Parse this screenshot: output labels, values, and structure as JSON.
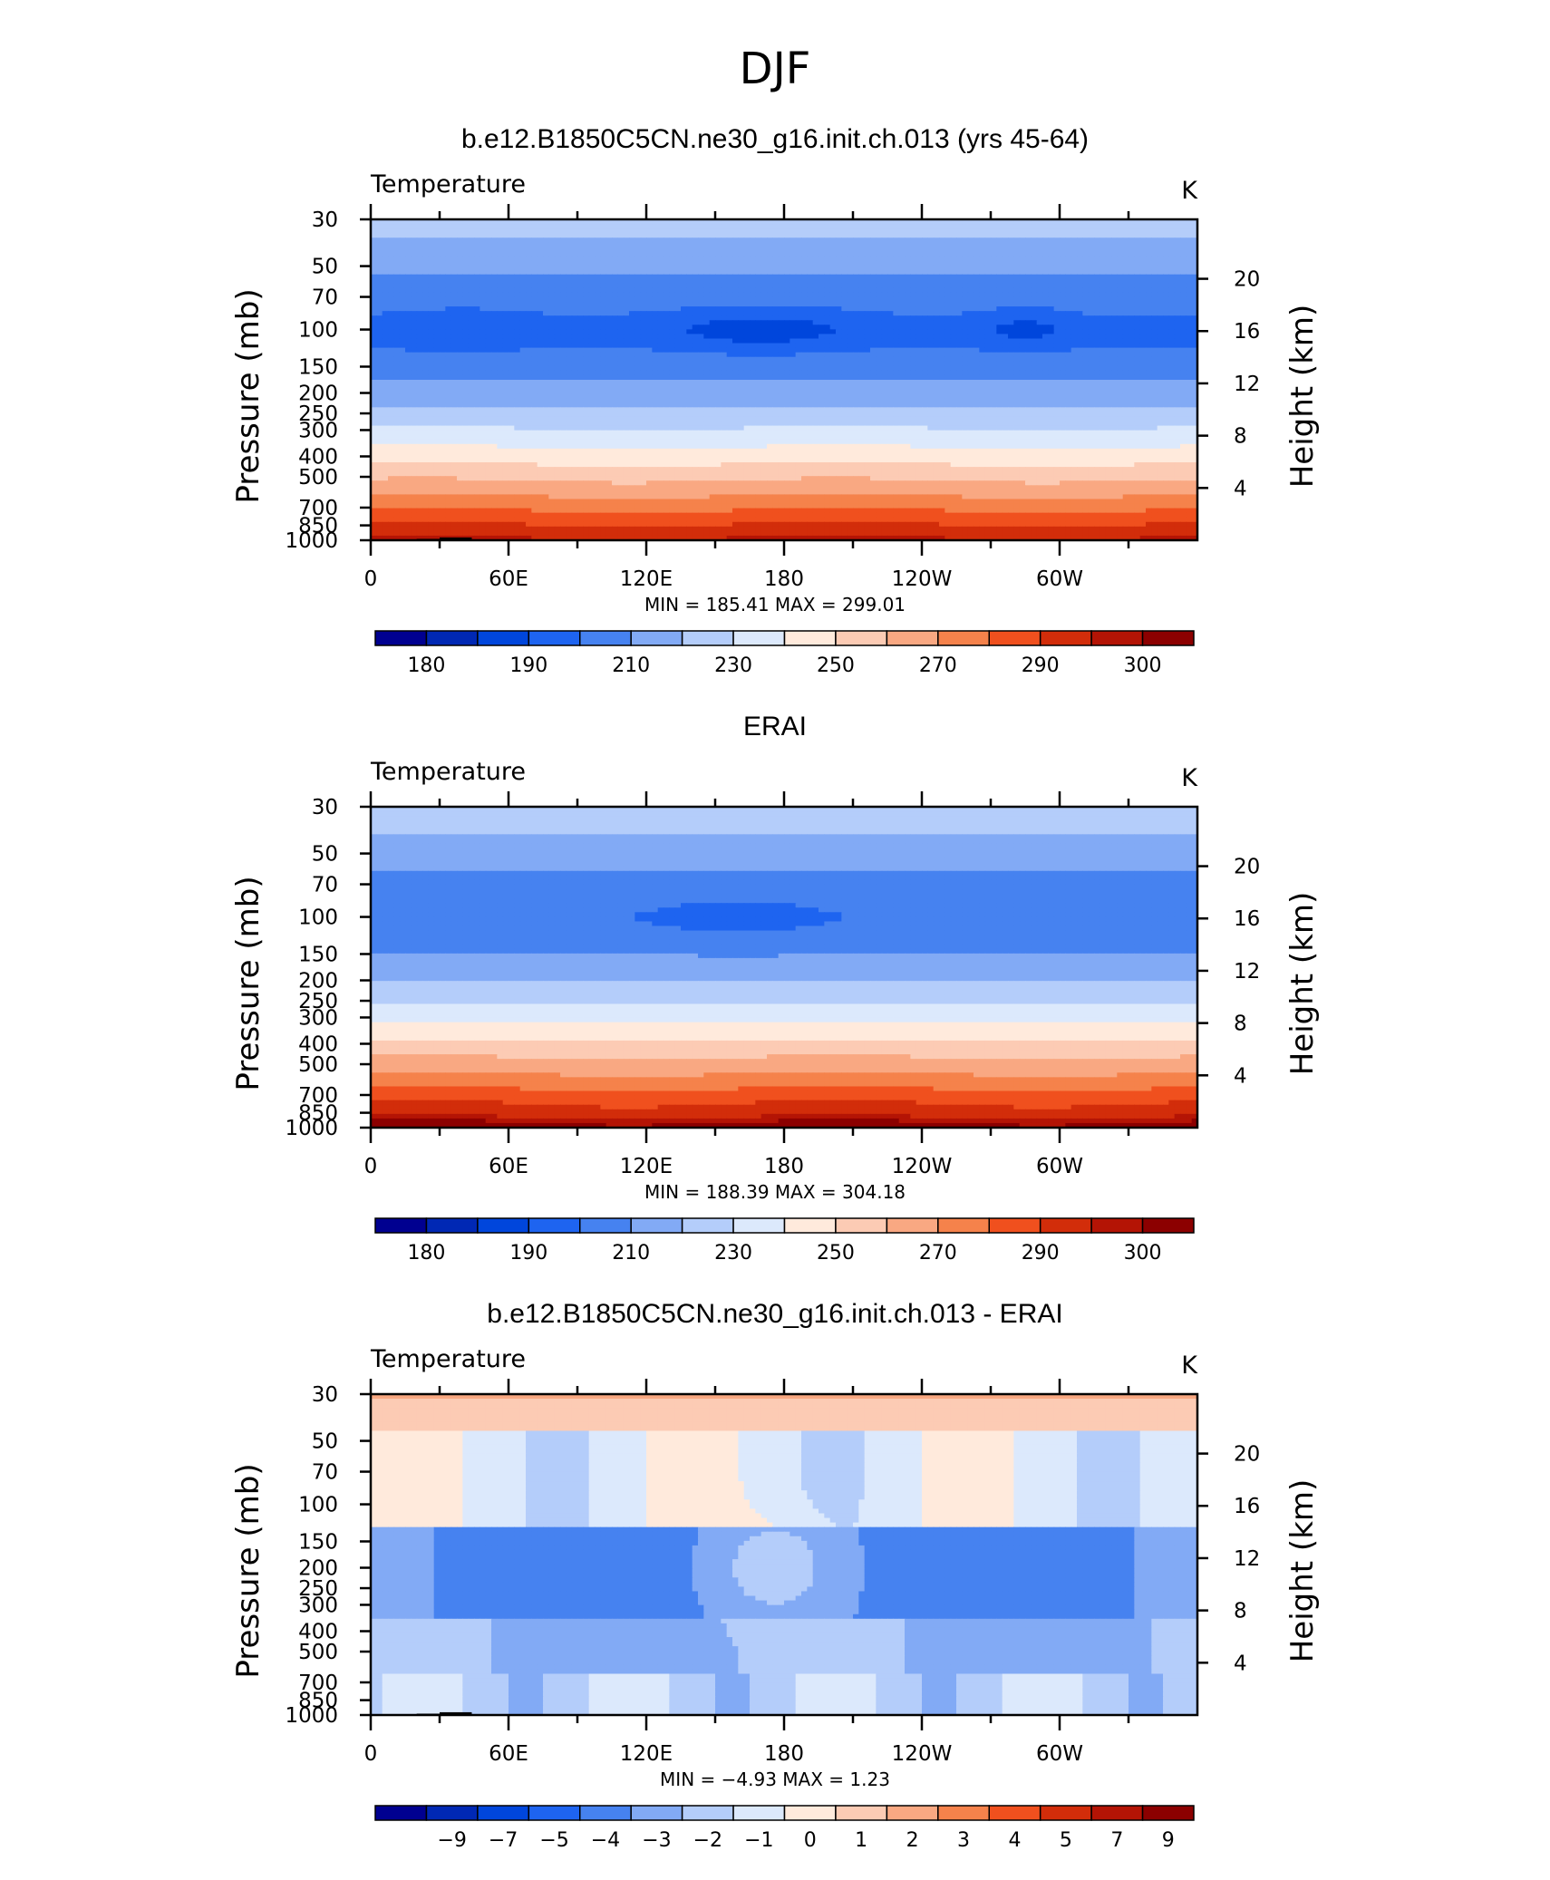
{
  "figure_title": "DJF",
  "colors": {
    "temperature_levels": [
      "#000090",
      "#0028b4",
      "#0046dc",
      "#1e64f0",
      "#4682f0",
      "#82aaf5",
      "#b4cdfa",
      "#dce9fc",
      "#ffeadc",
      "#fccbb4",
      "#f9a882",
      "#f5824b",
      "#f0501e",
      "#d22d0a",
      "#b41405",
      "#8c0000"
    ],
    "difference_levels": [
      "#000090",
      "#0028b4",
      "#0046dc",
      "#1e64f0",
      "#4682f0",
      "#82aaf5",
      "#b4cdfa",
      "#dce9fc",
      "#ffeadc",
      "#fccbb4",
      "#f9a882",
      "#f5824b",
      "#f0501e",
      "#d22d0a",
      "#b41405",
      "#8c0000"
    ],
    "topography": "#000000"
  },
  "chart_data": [
    {
      "type": "heatmap",
      "title": "b.e12.B1850C5CN.ne30_g16.init.ch.013 (yrs 45-64)",
      "left_string": "Temperature",
      "right_string": "K",
      "ylabel": "Pressure (mb)",
      "ylabel_right": "Height (km)",
      "x_ticks": [
        "0",
        "60E",
        "120E",
        "180",
        "120W",
        "60W"
      ],
      "x_tick_values": [
        0,
        60,
        120,
        180,
        240,
        300
      ],
      "xlim": [
        0,
        360
      ],
      "y_ticks": [
        "30",
        "50",
        "70",
        "100",
        "150",
        "200",
        "250",
        "300",
        "400",
        "500",
        "700",
        "850",
        "1000"
      ],
      "y_tick_values": [
        30,
        50,
        70,
        100,
        150,
        200,
        250,
        300,
        400,
        500,
        700,
        850,
        1000
      ],
      "ylim": [
        1000,
        30
      ],
      "y_scale": "log",
      "height_ticks": [
        "20",
        "16",
        "12",
        "8",
        "4"
      ],
      "height_tick_values": [
        20,
        16,
        12,
        8,
        4
      ],
      "min_label": "MIN =",
      "min_value": "185.41",
      "max_label": "MAX =",
      "max_value": "299.01",
      "colorbar_labels": [
        "180",
        "190",
        "210",
        "230",
        "250",
        "270",
        "290",
        "300"
      ],
      "contour_levels": [
        175,
        180,
        185,
        190,
        200,
        210,
        220,
        230,
        240,
        250,
        260,
        270,
        280,
        290,
        295,
        300
      ],
      "field": "model"
    },
    {
      "type": "heatmap",
      "title": "ERAI",
      "left_string": "Temperature",
      "right_string": "K",
      "ylabel": "Pressure (mb)",
      "ylabel_right": "Height (km)",
      "x_ticks": [
        "0",
        "60E",
        "120E",
        "180",
        "120W",
        "60W"
      ],
      "x_tick_values": [
        0,
        60,
        120,
        180,
        240,
        300
      ],
      "xlim": [
        0,
        360
      ],
      "y_ticks": [
        "30",
        "50",
        "70",
        "100",
        "150",
        "200",
        "250",
        "300",
        "400",
        "500",
        "700",
        "850",
        "1000"
      ],
      "y_tick_values": [
        30,
        50,
        70,
        100,
        150,
        200,
        250,
        300,
        400,
        500,
        700,
        850,
        1000
      ],
      "ylim": [
        1000,
        30
      ],
      "y_scale": "log",
      "height_ticks": [
        "20",
        "16",
        "12",
        "8",
        "4"
      ],
      "height_tick_values": [
        20,
        16,
        12,
        8,
        4
      ],
      "min_label": "MIN =",
      "min_value": "188.39",
      "max_label": "MAX =",
      "max_value": "304.18",
      "colorbar_labels": [
        "180",
        "190",
        "210",
        "230",
        "250",
        "270",
        "290",
        "300"
      ],
      "contour_levels": [
        175,
        180,
        185,
        190,
        200,
        210,
        220,
        230,
        240,
        250,
        260,
        270,
        280,
        290,
        295,
        300
      ],
      "field": "obs"
    },
    {
      "type": "heatmap",
      "title": "b.e12.B1850C5CN.ne30_g16.init.ch.013 - ERAI",
      "left_string": "Temperature",
      "right_string": "K",
      "ylabel": "Pressure (mb)",
      "ylabel_right": "Height (km)",
      "x_ticks": [
        "0",
        "60E",
        "120E",
        "180",
        "120W",
        "60W"
      ],
      "x_tick_values": [
        0,
        60,
        120,
        180,
        240,
        300
      ],
      "xlim": [
        0,
        360
      ],
      "y_ticks": [
        "30",
        "50",
        "70",
        "100",
        "150",
        "200",
        "250",
        "300",
        "400",
        "500",
        "700",
        "850",
        "1000"
      ],
      "y_tick_values": [
        30,
        50,
        70,
        100,
        150,
        200,
        250,
        300,
        400,
        500,
        700,
        850,
        1000
      ],
      "ylim": [
        1000,
        30
      ],
      "y_scale": "log",
      "height_ticks": [
        "20",
        "16",
        "12",
        "8",
        "4"
      ],
      "height_tick_values": [
        20,
        16,
        12,
        8,
        4
      ],
      "min_label": "MIN =",
      "min_value": "−4.93",
      "max_label": "MAX =",
      "max_value": "1.23",
      "colorbar_labels": [
        "−9",
        "−7",
        "−5",
        "−4",
        "−3",
        "−2",
        "−1",
        "0",
        "1",
        "2",
        "3",
        "4",
        "5",
        "7",
        "9"
      ],
      "contour_levels": [
        -11,
        -9,
        -7,
        -5,
        -4,
        -3,
        -2,
        -1,
        0,
        1,
        2,
        3,
        4,
        5,
        7,
        9
      ],
      "field": "diff"
    }
  ]
}
